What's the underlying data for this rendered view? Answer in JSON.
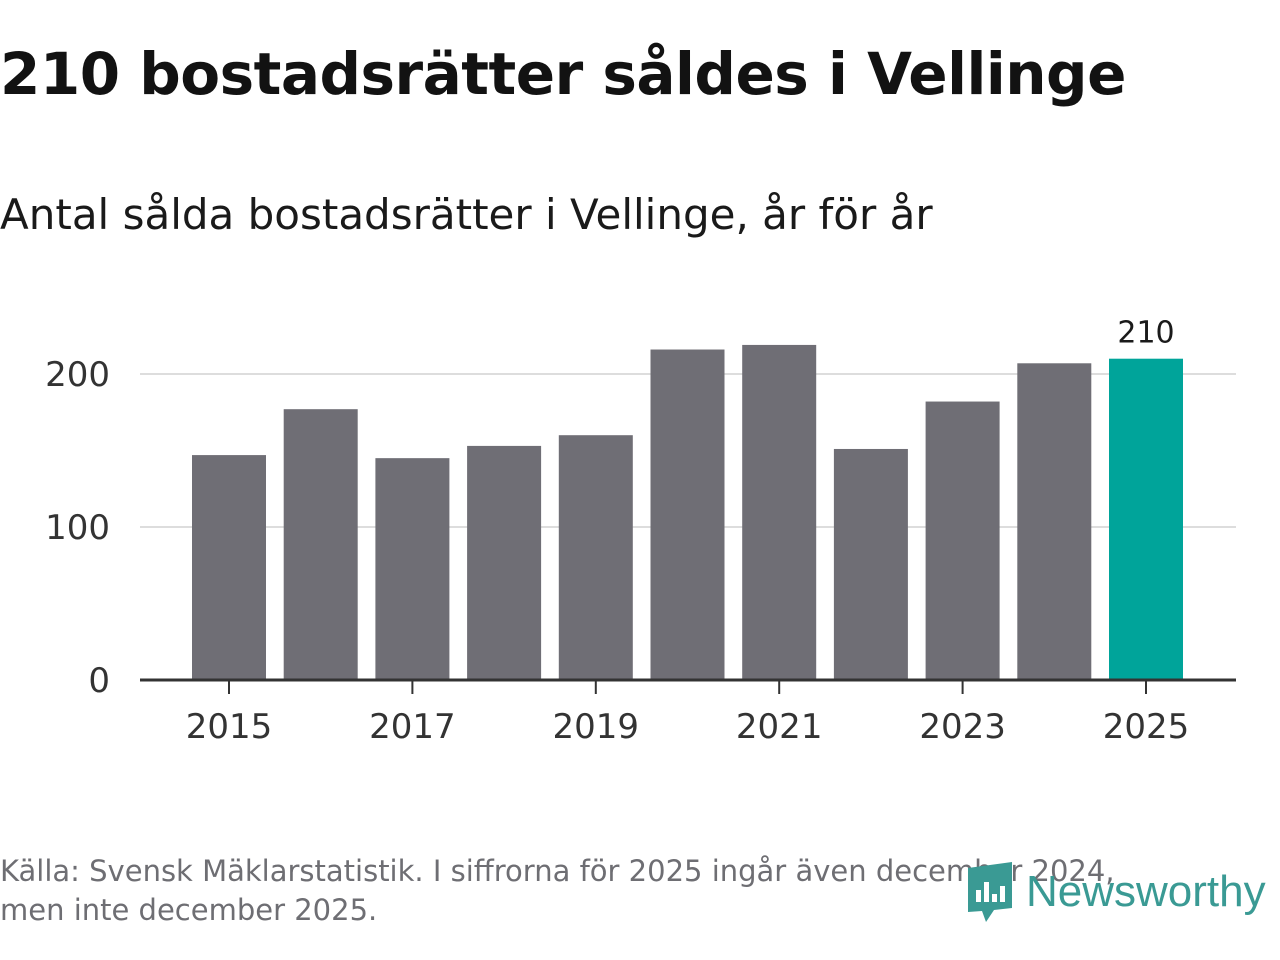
{
  "title": "210 bostadsrätter såldes i Vellinge",
  "subtitle": "Antal sålda bostadsrätter i Vellinge, år för år",
  "source": {
    "line1": "Källa: Svensk Mäklarstatistik. I siffrorna för 2025 ingår även december 2024,",
    "line2": "men inte december 2025."
  },
  "brand": {
    "name": "Newsworthy",
    "color": "#3a9a94"
  },
  "colors": {
    "bar": "#6f6e75",
    "highlight": "#00a49a",
    "grid": "#dddddd",
    "axis": "#333333"
  },
  "chart_data": {
    "type": "bar",
    "categories": [
      "2015",
      "2016",
      "2017",
      "2018",
      "2019",
      "2020",
      "2021",
      "2022",
      "2023",
      "2024",
      "2025"
    ],
    "values": [
      147,
      177,
      145,
      153,
      160,
      216,
      219,
      151,
      182,
      207,
      210
    ],
    "highlight_index": 10,
    "data_labels": [
      {
        "index": 10,
        "text": "210"
      }
    ],
    "x_tick_labels": [
      "2015",
      "2017",
      "2019",
      "2021",
      "2023",
      "2025"
    ],
    "y_ticks": [
      0,
      100,
      200
    ],
    "ylim": [
      0,
      230
    ],
    "title": "Antal sålda bostadsrätter i Vellinge, år för år",
    "xlabel": "",
    "ylabel": "",
    "grid": true
  }
}
